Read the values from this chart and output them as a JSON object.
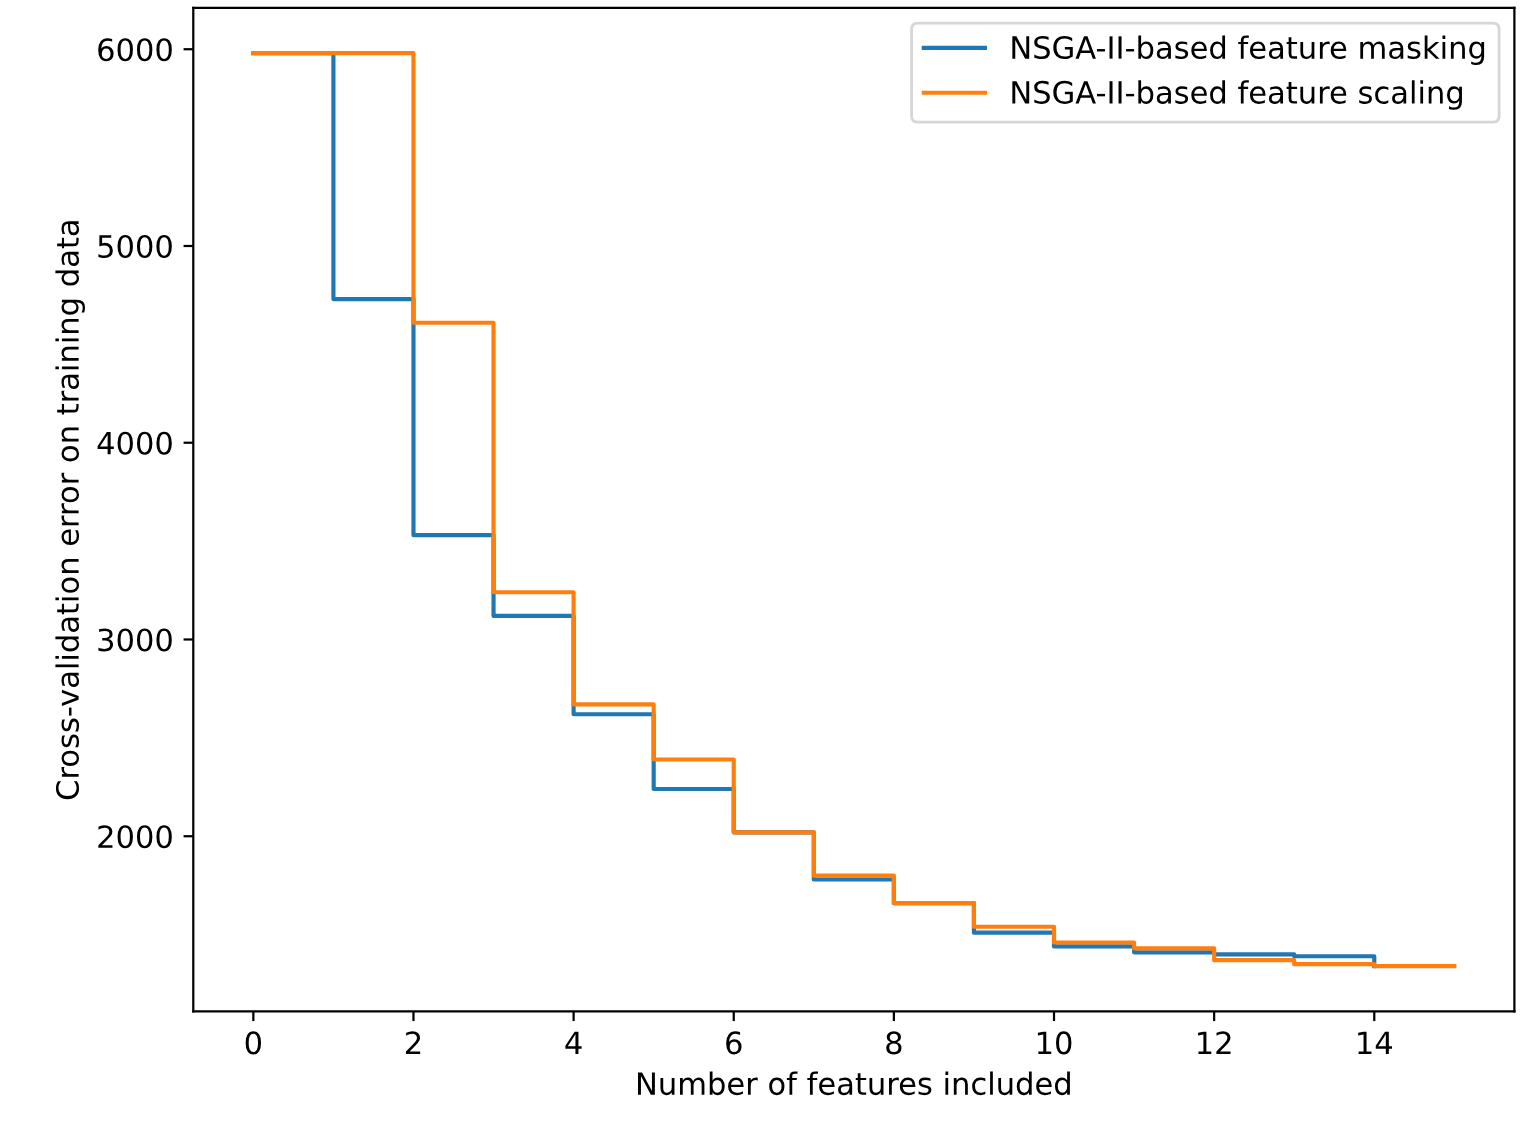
{
  "chart_data": {
    "type": "step",
    "xlabel": "Number of features included",
    "ylabel": "Cross-validation error on training data",
    "xlim": [
      -0.75,
      15.75
    ],
    "xticks": [
      0,
      2,
      4,
      6,
      8,
      10,
      12,
      14
    ],
    "ylim": [
      1110,
      6210
    ],
    "yticks": [
      2000,
      3000,
      4000,
      5000,
      6000
    ],
    "legend": "top right",
    "grid": false,
    "series": [
      {
        "name": "NSGA-II-based feature masking",
        "color": "#1f77b4",
        "x": [
          0,
          1,
          2,
          3,
          4,
          5,
          6,
          7,
          8,
          9,
          10,
          11,
          12,
          13,
          14
        ],
        "values": [
          5980,
          4730,
          3530,
          3120,
          2620,
          2240,
          2020,
          1780,
          1660,
          1510,
          1440,
          1410,
          1400,
          1390,
          1340
        ]
      },
      {
        "name": "NSGA-II-based feature scaling",
        "color": "#ff7f0e",
        "x": [
          0,
          1,
          2,
          3,
          4,
          5,
          6,
          7,
          8,
          9,
          10,
          11,
          12,
          13,
          14,
          15
        ],
        "values": [
          5980,
          5980,
          4610,
          3240,
          2670,
          2390,
          2020,
          1800,
          1660,
          1540,
          1460,
          1430,
          1370,
          1350,
          1340,
          1340
        ]
      }
    ]
  }
}
